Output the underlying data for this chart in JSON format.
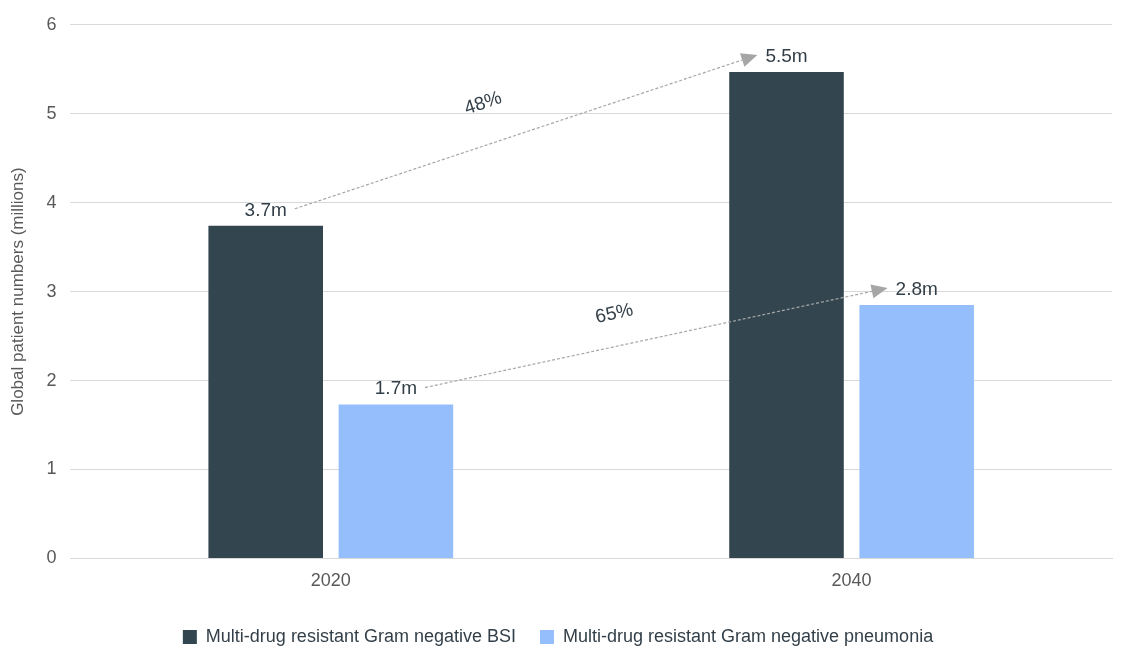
{
  "chart_data": {
    "type": "bar",
    "ylabel": "Global patient numbers (millions)",
    "categories": [
      "2020",
      "2040"
    ],
    "series": [
      {
        "name": "Multi-drug resistant Gram negative BSI",
        "color": "#334650",
        "values": [
          3.74,
          5.47
        ],
        "value_labels": [
          "3.7m",
          "5.5m"
        ]
      },
      {
        "name": "Multi-drug resistant Gram negative pneumonia",
        "color": "#95bffc",
        "values": [
          1.73,
          2.85
        ],
        "value_labels": [
          "1.7m",
          "2.8m"
        ]
      }
    ],
    "ylim": [
      0,
      6
    ],
    "yticks": [
      0,
      1,
      2,
      3,
      4,
      5,
      6
    ],
    "grid": "y",
    "legend": "bottom",
    "annotations": [
      "48%",
      "65%"
    ]
  }
}
